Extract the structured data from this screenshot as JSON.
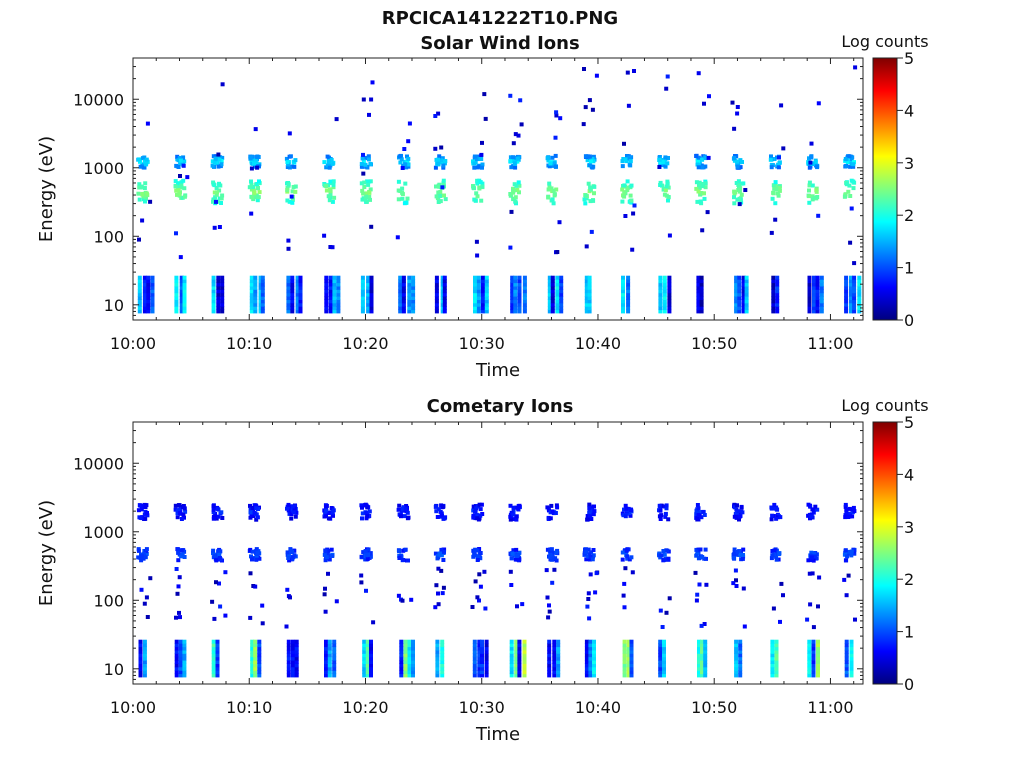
{
  "figure": {
    "filename": "RPCICA141222T10.PNG"
  },
  "colorbar": {
    "label": "Log counts",
    "ticks": [
      "0",
      "1",
      "2",
      "3",
      "4",
      "5"
    ],
    "range": [
      0,
      5
    ],
    "colormap": "jet",
    "stops": [
      "#00007f",
      "#0000ff",
      "#007fff",
      "#00ffff",
      "#7fff7f",
      "#ffff00",
      "#ff7f00",
      "#ff0000",
      "#7f0000"
    ]
  },
  "chart_data": [
    {
      "type": "heatmap",
      "title": "Solar Wind Ions",
      "xlabel": "Time",
      "ylabel": "Energy (eV)",
      "x_ticks": [
        "10:00",
        "10:10",
        "10:20",
        "10:30",
        "10:40",
        "10:50",
        "11:00"
      ],
      "x_tick_minutes": [
        0,
        10,
        20,
        30,
        40,
        50,
        60
      ],
      "xlim_minutes": [
        0,
        62.8
      ],
      "y_scale": "log",
      "y_ticks": [
        "10",
        "100",
        "1000",
        "10000"
      ],
      "y_tick_values": [
        10,
        100,
        1000,
        10000
      ],
      "ylim": [
        6,
        40000
      ],
      "color_scale": "Log counts",
      "sweep_minutes": 3.2,
      "sweep_start_minutes": [
        0.7,
        3.9,
        7.1,
        10.3,
        13.5,
        16.7,
        19.9,
        23.1,
        26.3,
        29.5,
        32.7,
        35.9,
        39.1,
        42.3,
        45.5,
        48.7,
        51.9,
        55.1,
        58.3,
        61.5
      ],
      "features": [
        {
          "energy": [
            300,
            650
          ],
          "log_counts": [
            1.5,
            2.5
          ],
          "description": "main solar wind proton peak"
        },
        {
          "energy": [
            1000,
            1500
          ],
          "log_counts": [
            0.5,
            1.8
          ],
          "description": "secondary peak"
        },
        {
          "energy": [
            8,
            25
          ],
          "log_counts": [
            0.3,
            1.8
          ],
          "description": "low-energy streaks"
        },
        {
          "energy": [
            40,
            30000
          ],
          "log_counts": [
            0.2,
            0.8
          ],
          "description": "sparse background"
        }
      ]
    },
    {
      "type": "heatmap",
      "title": "Cometary Ions",
      "xlabel": "Time",
      "ylabel": "Energy (eV)",
      "x_ticks": [
        "10:00",
        "10:10",
        "10:20",
        "10:30",
        "10:40",
        "10:50",
        "11:00"
      ],
      "x_tick_minutes": [
        0,
        10,
        20,
        30,
        40,
        50,
        60
      ],
      "xlim_minutes": [
        0,
        62.8
      ],
      "y_scale": "log",
      "y_ticks": [
        "10",
        "100",
        "1000",
        "10000"
      ],
      "y_tick_values": [
        10,
        100,
        1000,
        10000
      ],
      "ylim": [
        6,
        40000
      ],
      "color_scale": "Log counts",
      "sweep_minutes": 3.2,
      "sweep_start_minutes": [
        0.7,
        3.9,
        7.1,
        10.3,
        13.5,
        16.7,
        19.9,
        23.1,
        26.3,
        29.5,
        32.7,
        35.9,
        39.1,
        42.3,
        45.5,
        48.7,
        51.9,
        55.1,
        58.3,
        61.5
      ],
      "features": [
        {
          "energy": [
            380,
            560
          ],
          "log_counts": [
            0.5,
            1.0
          ],
          "description": "band near 450 eV"
        },
        {
          "energy": [
            1500,
            2500
          ],
          "log_counts": [
            0.3,
            0.8
          ],
          "description": "sparse band near 2 keV"
        },
        {
          "energy": [
            8,
            25
          ],
          "log_counts": [
            0.5,
            2.8
          ],
          "description": "low-energy cometary ions"
        },
        {
          "energy": [
            40,
            300
          ],
          "log_counts": [
            0.2,
            0.8
          ],
          "description": "sparse background"
        }
      ]
    }
  ]
}
